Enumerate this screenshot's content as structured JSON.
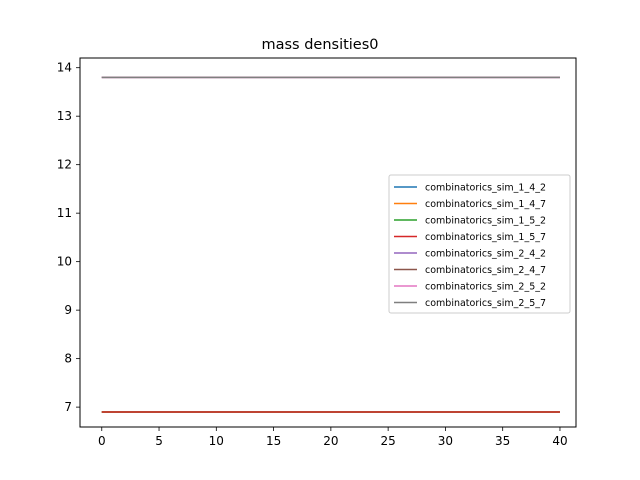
{
  "chart_data": {
    "type": "line",
    "title": "mass densities0",
    "xlabel": "",
    "ylabel": "",
    "xlim": [
      -1.9,
      41.4
    ],
    "ylim": [
      6.59,
      14.2
    ],
    "x_ticks": [
      0,
      5,
      10,
      15,
      20,
      25,
      30,
      35,
      40
    ],
    "y_ticks": [
      7,
      8,
      9,
      10,
      11,
      12,
      13,
      14
    ],
    "grid": false,
    "legend_position": "center-right",
    "series": [
      {
        "name": "combinatorics_sim_1_4_2",
        "color": "#1f77b4",
        "x": [
          0,
          40
        ],
        "y": [
          6.9,
          6.9
        ]
      },
      {
        "name": "combinatorics_sim_1_4_7",
        "color": "#ff7f0e",
        "x": [
          0,
          40
        ],
        "y": [
          6.9,
          6.9
        ]
      },
      {
        "name": "combinatorics_sim_1_5_2",
        "color": "#2ca02c",
        "x": [
          0,
          40
        ],
        "y": [
          6.9,
          6.9
        ]
      },
      {
        "name": "combinatorics_sim_1_5_7",
        "color": "#d62728",
        "x": [
          0,
          40
        ],
        "y": [
          6.9,
          6.9
        ]
      },
      {
        "name": "combinatorics_sim_2_4_2",
        "color": "#9467bd",
        "x": [
          0,
          40
        ],
        "y": [
          13.8,
          13.8
        ]
      },
      {
        "name": "combinatorics_sim_2_4_7",
        "color": "#8c564b",
        "x": [
          0,
          40
        ],
        "y": [
          13.8,
          13.8
        ]
      },
      {
        "name": "combinatorics_sim_2_5_2",
        "color": "#e377c2",
        "x": [
          0,
          40
        ],
        "y": [
          13.8,
          13.8
        ]
      },
      {
        "name": "combinatorics_sim_2_5_7",
        "color": "#7f7f7f",
        "x": [
          0,
          40
        ],
        "y": [
          13.8,
          13.8
        ]
      }
    ]
  }
}
